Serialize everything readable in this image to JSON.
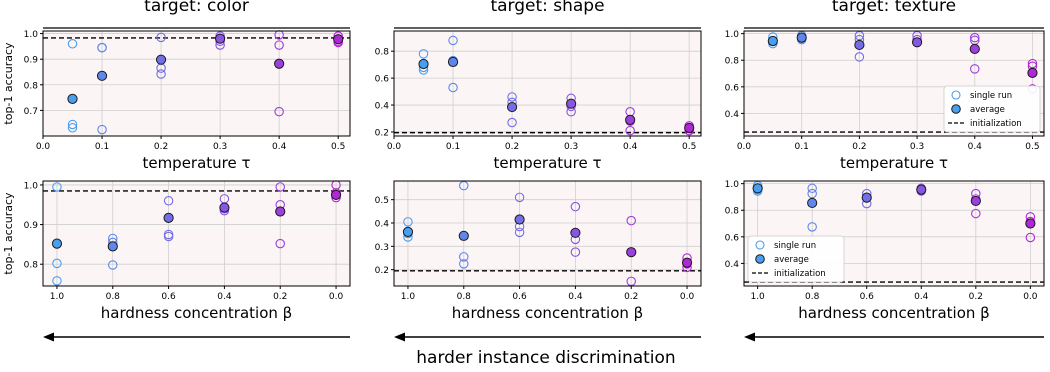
{
  "figure": {
    "column_titles": [
      "target: color",
      "target: shape",
      "target: texture"
    ],
    "bottom_caption": "harder instance discrimination",
    "legend": {
      "single": "single run",
      "average": "average",
      "init": "initialization"
    },
    "colors": {
      "panel_bg": "#fcf5f5",
      "grid": "#cfcfcf",
      "gradient_start": "#4a9ef0",
      "gradient_end": "#b027d8",
      "marker_edge": "#1a1a1a"
    }
  },
  "chart_data": [
    {
      "type": "scatter",
      "target": "color",
      "row": "temperature",
      "xlabel": "temperature τ",
      "ylabel": "top-1 accuracy",
      "xlim": [
        0.0,
        0.52
      ],
      "ylim": [
        0.6,
        1.01
      ],
      "xticks": [
        0.0,
        0.1,
        0.2,
        0.3,
        0.4,
        0.5
      ],
      "xtick_labels": [
        "0.0",
        "0.1",
        "0.2",
        "0.3",
        "0.4",
        "0.5"
      ],
      "yticks": [
        0.7,
        0.8,
        0.9,
        1.0
      ],
      "ytick_labels": [
        "0.7",
        "0.8",
        "0.9",
        "1.0"
      ],
      "initialization": 0.983,
      "legend": false,
      "grid": true,
      "x": [
        0.05,
        0.1,
        0.2,
        0.3,
        0.4,
        0.5
      ],
      "average": [
        0.745,
        0.835,
        0.898,
        0.98,
        0.882,
        0.978
      ],
      "single_runs": [
        [
          0.96,
          0.645,
          0.632
        ],
        [
          0.945,
          0.945,
          0.625
        ],
        [
          0.985,
          0.865,
          0.842
        ],
        [
          0.99,
          0.97,
          0.955
        ],
        [
          0.995,
          0.955,
          0.695
        ],
        [
          0.99,
          0.97,
          0.965
        ]
      ]
    },
    {
      "type": "scatter",
      "target": "shape",
      "row": "temperature",
      "xlabel": "temperature τ",
      "ylabel": "",
      "xlim": [
        0.0,
        0.52
      ],
      "ylim": [
        0.17,
        0.95
      ],
      "xticks": [
        0.0,
        0.1,
        0.2,
        0.3,
        0.4,
        0.5
      ],
      "xtick_labels": [
        "0.0",
        "0.1",
        "0.2",
        "0.3",
        "0.4",
        "0.5"
      ],
      "yticks": [
        0.2,
        0.4,
        0.6,
        0.8
      ],
      "ytick_labels": [
        "0.2",
        "0.4",
        "0.6",
        "0.8"
      ],
      "initialization": 0.195,
      "legend": false,
      "grid": true,
      "x": [
        0.05,
        0.1,
        0.2,
        0.3,
        0.4,
        0.5
      ],
      "average": [
        0.705,
        0.72,
        0.385,
        0.41,
        0.29,
        0.23
      ],
      "single_runs": [
        [
          0.78,
          0.68,
          0.66
        ],
        [
          0.88,
          0.73,
          0.53
        ],
        [
          0.46,
          0.42,
          0.27
        ],
        [
          0.45,
          0.39,
          0.35
        ],
        [
          0.35,
          0.28,
          0.21
        ],
        [
          0.245,
          0.225,
          0.21
        ]
      ]
    },
    {
      "type": "scatter",
      "target": "texture",
      "row": "temperature",
      "xlabel": "temperature τ",
      "ylabel": "",
      "xlim": [
        0.0,
        0.52
      ],
      "ylim": [
        0.23,
        1.02
      ],
      "xticks": [
        0.0,
        0.1,
        0.2,
        0.3,
        0.4,
        0.5
      ],
      "xtick_labels": [
        "0.0",
        "0.1",
        "0.2",
        "0.3",
        "0.4",
        "0.5"
      ],
      "yticks": [
        0.4,
        0.6,
        0.8,
        1.0
      ],
      "ytick_labels": [
        "0.4",
        "0.6",
        "0.8",
        "1.0"
      ],
      "initialization": 0.26,
      "legend": true,
      "legend_position": "lower right",
      "grid": true,
      "x": [
        0.05,
        0.1,
        0.2,
        0.3,
        0.4,
        0.5
      ],
      "average": [
        0.945,
        0.97,
        0.915,
        0.935,
        0.885,
        0.705
      ],
      "single_runs": [
        [
          0.975,
          0.94,
          0.925
        ],
        [
          0.985,
          0.965,
          0.955
        ],
        [
          0.985,
          0.955,
          0.825
        ],
        [
          0.985,
          0.955,
          0.935
        ],
        [
          0.97,
          0.95,
          0.735
        ],
        [
          0.775,
          0.755,
          0.585
        ]
      ]
    },
    {
      "type": "scatter",
      "target": "color",
      "row": "hardness",
      "xlabel": "hardness concentration β",
      "ylabel": "top-1 accuracy",
      "xlim": [
        1.05,
        -0.05
      ],
      "ylim": [
        0.745,
        1.01
      ],
      "xticks": [
        1.0,
        0.8,
        0.6,
        0.4,
        0.2,
        0.0
      ],
      "xtick_labels": [
        "1.0",
        "0.8",
        "0.6",
        "0.4",
        "0.2",
        "0.0"
      ],
      "yticks": [
        0.8,
        0.9,
        1.0
      ],
      "ytick_labels": [
        "0.8",
        "0.9",
        "1.0"
      ],
      "initialization": 0.985,
      "legend": false,
      "grid": true,
      "x": [
        1.0,
        0.8,
        0.6,
        0.4,
        0.2,
        0.0
      ],
      "average": [
        0.852,
        0.845,
        0.917,
        0.943,
        0.933,
        0.975
      ],
      "single_runs": [
        [
          0.995,
          0.802,
          0.758
        ],
        [
          0.865,
          0.855,
          0.798
        ],
        [
          0.96,
          0.875,
          0.87
        ],
        [
          0.965,
          0.94,
          0.935
        ],
        [
          0.995,
          0.95,
          0.852
        ],
        [
          1.0,
          0.98,
          0.968
        ]
      ]
    },
    {
      "type": "scatter",
      "target": "shape",
      "row": "hardness",
      "xlabel": "hardness concentration β",
      "ylabel": "",
      "xlim": [
        1.05,
        -0.05
      ],
      "ylim": [
        0.13,
        0.58
      ],
      "xticks": [
        1.0,
        0.8,
        0.6,
        0.4,
        0.2,
        0.0
      ],
      "xtick_labels": [
        "1.0",
        "0.8",
        "0.6",
        "0.4",
        "0.2",
        "0.0"
      ],
      "yticks": [
        0.2,
        0.3,
        0.4,
        0.5
      ],
      "ytick_labels": [
        "0.2",
        "0.3",
        "0.4",
        "0.5"
      ],
      "initialization": 0.195,
      "legend": false,
      "grid": true,
      "x": [
        1.0,
        0.8,
        0.6,
        0.4,
        0.2,
        0.0
      ],
      "average": [
        0.362,
        0.345,
        0.415,
        0.358,
        0.275,
        0.23
      ],
      "single_runs": [
        [
          0.405,
          0.355,
          0.34
        ],
        [
          0.56,
          0.255,
          0.225
        ],
        [
          0.51,
          0.385,
          0.36
        ],
        [
          0.47,
          0.33,
          0.275
        ],
        [
          0.41,
          0.275,
          0.15
        ],
        [
          0.25,
          0.225,
          0.21
        ]
      ]
    },
    {
      "type": "scatter",
      "target": "texture",
      "row": "hardness",
      "xlabel": "hardness concentration β",
      "ylabel": "",
      "xlim": [
        1.05,
        -0.05
      ],
      "ylim": [
        0.23,
        1.02
      ],
      "xticks": [
        1.0,
        0.8,
        0.6,
        0.4,
        0.2,
        0.0
      ],
      "xtick_labels": [
        "1.0",
        "0.8",
        "0.6",
        "0.4",
        "0.2",
        "0.0"
      ],
      "yticks": [
        0.4,
        0.6,
        0.8,
        1.0
      ],
      "ytick_labels": [
        "0.4",
        "0.6",
        "0.8",
        "1.0"
      ],
      "initialization": 0.26,
      "legend": true,
      "legend_position": "lower left",
      "grid": true,
      "x": [
        1.0,
        0.8,
        0.6,
        0.4,
        0.2,
        0.0
      ],
      "average": [
        0.965,
        0.855,
        0.895,
        0.955,
        0.87,
        0.7
      ],
      "single_runs": [
        [
          0.985,
          0.955,
          0.945
        ],
        [
          0.965,
          0.925,
          0.675
        ],
        [
          0.925,
          0.895,
          0.85
        ],
        [
          0.965,
          0.955,
          0.945
        ],
        [
          0.925,
          0.885,
          0.775
        ],
        [
          0.75,
          0.715,
          0.595
        ]
      ]
    }
  ]
}
